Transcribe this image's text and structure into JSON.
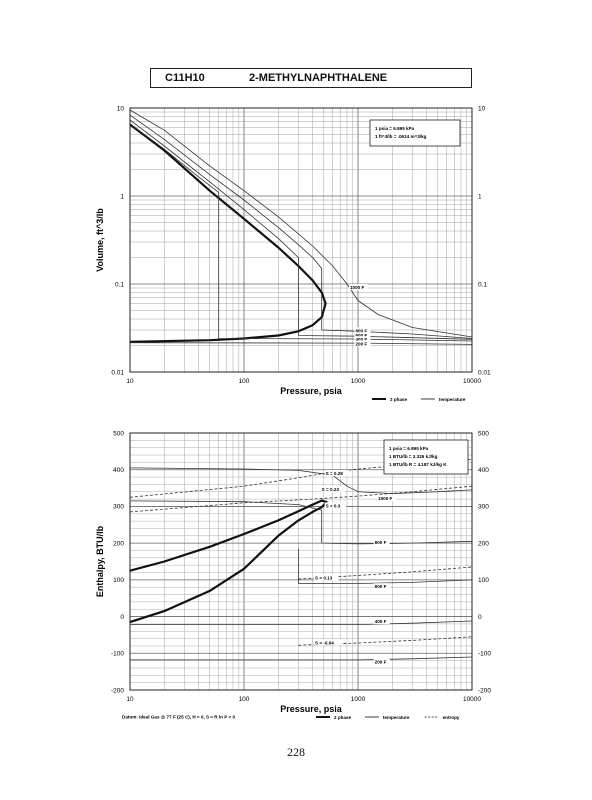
{
  "header": {
    "formula": "C11H10",
    "name": "2-METHYLNAPHTHALENE"
  },
  "page_number": "228",
  "chart_data": [
    {
      "type": "line",
      "xscale": "log",
      "yscale": "log",
      "xlim": [
        10,
        10000
      ],
      "ylim": [
        0.01,
        10
      ],
      "xlabel": "Pressure,  psia",
      "ylabel": "Volume,  ft^3/lb",
      "x_ticks": [
        "10",
        "100",
        "1000",
        "10000"
      ],
      "y_ticks_left": [
        "0.01",
        "0.1",
        "1",
        "10"
      ],
      "y_ticks_right": [
        "0.01",
        "0.1",
        "1",
        "10"
      ],
      "conversion_box": [
        "1 psia  =  6.895 kPa",
        "1 ft^3/lb  =  .0624 m^3/kg"
      ],
      "legend": [
        {
          "name": "2 phase",
          "style": "thick"
        },
        {
          "name": "temperature",
          "style": "thin"
        }
      ],
      "series": [
        {
          "name": "2 phase",
          "points": [
            [
              10,
              6.5
            ],
            [
              20,
              3.3
            ],
            [
              50,
              1.15
            ],
            [
              100,
              0.55
            ],
            [
              200,
              0.26
            ],
            [
              300,
              0.16
            ],
            [
              400,
              0.11
            ],
            [
              480,
              0.08
            ],
            [
              520,
              0.06
            ],
            [
              480,
              0.042
            ],
            [
              400,
              0.034
            ],
            [
              300,
              0.029
            ],
            [
              200,
              0.026
            ],
            [
              100,
              0.024
            ],
            [
              50,
              0.023
            ],
            [
              10,
              0.022
            ]
          ]
        },
        {
          "name": "1000 F",
          "points": [
            [
              10,
              9.5
            ],
            [
              20,
              5.6
            ],
            [
              50,
              2.2
            ],
            [
              100,
              1.15
            ],
            [
              200,
              0.58
            ],
            [
              400,
              0.27
            ],
            [
              600,
              0.16
            ],
            [
              800,
              0.1
            ],
            [
              1000,
              0.065
            ],
            [
              1500,
              0.045
            ],
            [
              3000,
              0.032
            ],
            [
              10000,
              0.025
            ]
          ]
        },
        {
          "name": "800 F",
          "points": [
            [
              10,
              8.3
            ],
            [
              20,
              4.4
            ],
            [
              50,
              1.75
            ],
            [
              100,
              0.9
            ],
            [
              200,
              0.44
            ],
            [
              300,
              0.28
            ],
            [
              400,
              0.2
            ],
            [
              480,
              0.15
            ],
            [
              480,
              0.03
            ],
            [
              1000,
              0.029
            ],
            [
              3000,
              0.027
            ],
            [
              10000,
              0.024
            ]
          ]
        },
        {
          "name": "600 F",
          "points": [
            [
              10,
              7.3
            ],
            [
              20,
              3.7
            ],
            [
              50,
              1.45
            ],
            [
              100,
              0.7
            ],
            [
              200,
              0.33
            ],
            [
              300,
              0.2
            ],
            [
              300,
              0.026
            ],
            [
              1000,
              0.0255
            ],
            [
              10000,
              0.0235
            ]
          ]
        },
        {
          "name": "400 F",
          "points": [
            [
              10,
              6.6
            ],
            [
              20,
              3.4
            ],
            [
              40,
              1.65
            ],
            [
              60,
              1.1
            ],
            [
              60,
              0.024
            ],
            [
              1000,
              0.0237
            ],
            [
              10000,
              0.0225
            ]
          ]
        },
        {
          "name": "200 F",
          "points": [
            [
              10,
              0.0215
            ],
            [
              1000,
              0.0213
            ],
            [
              10000,
              0.0206
            ]
          ]
        }
      ],
      "curve_labels": [
        "1000 F",
        "800 F",
        "600 F",
        "400 F",
        "200 F"
      ]
    },
    {
      "type": "line",
      "xscale": "log",
      "yscale": "linear",
      "xlim": [
        10,
        10000
      ],
      "ylim": [
        -200,
        500
      ],
      "xlabel": "Pressure,  psia",
      "ylabel": "Enthalpy,  BTU/lb",
      "x_ticks": [
        "10",
        "100",
        "1000",
        "10000"
      ],
      "y_ticks_left": [
        "-200",
        "-100",
        "0",
        "100",
        "200",
        "300",
        "400",
        "500"
      ],
      "y_ticks_right": [
        "-200",
        "-100",
        "0",
        "100",
        "200",
        "300",
        "400",
        "500"
      ],
      "conversion_box": [
        "1 psia  =  6.895 kPa",
        "1 BTU/lb  =  2.326 kJ/kg",
        "1 BTU/lb R  =  4.187 kJ/kg K"
      ],
      "legend": [
        {
          "name": "2 phase",
          "style": "thick"
        },
        {
          "name": "temperature",
          "style": "thin"
        },
        {
          "name": "entropy",
          "style": "dashed"
        }
      ],
      "footnote": "Datum: Ideal Gas @ 77 F (25 C),  H = 0,  S = R ln P = 0",
      "series": [
        {
          "name": "2 phase",
          "points": [
            [
              10,
              125
            ],
            [
              20,
              150
            ],
            [
              50,
              190
            ],
            [
              100,
              225
            ],
            [
              200,
              262
            ],
            [
              300,
              287
            ],
            [
              400,
              305
            ],
            [
              480,
              316
            ],
            [
              530,
              312
            ],
            [
              480,
              298
            ],
            [
              400,
              285
            ],
            [
              300,
              262
            ],
            [
              200,
              220
            ],
            [
              100,
              130
            ],
            [
              50,
              70
            ],
            [
              20,
              15
            ],
            [
              10,
              -15
            ]
          ]
        },
        {
          "name": "1000 F",
          "points": [
            [
              10,
              405
            ],
            [
              100,
              402
            ],
            [
              300,
              398
            ],
            [
              600,
              385
            ],
            [
              800,
              355
            ],
            [
              1000,
              340
            ],
            [
              2000,
              335
            ],
            [
              5000,
              340
            ],
            [
              10000,
              345
            ]
          ]
        },
        {
          "name": "800 F",
          "points": [
            [
              10,
              315
            ],
            [
              100,
              313
            ],
            [
              300,
              305
            ],
            [
              480,
              290
            ],
            [
              480,
              200
            ],
            [
              1000,
              198
            ],
            [
              3000,
              200
            ],
            [
              10000,
              205
            ]
          ]
        },
        {
          "name": "600 F",
          "points": [
            [
              300,
              185
            ],
            [
              300,
              90
            ],
            [
              1000,
              90
            ],
            [
              3000,
              93
            ],
            [
              10000,
              100
            ]
          ]
        },
        {
          "name": "400 F",
          "points": [
            [
              10,
              -22
            ],
            [
              1000,
              -22
            ],
            [
              3000,
              -18
            ],
            [
              10000,
              -12
            ]
          ]
        },
        {
          "name": "200 F",
          "points": [
            [
              10,
              -118
            ],
            [
              1000,
              -118
            ],
            [
              3000,
              -115
            ],
            [
              10000,
              -110
            ]
          ]
        },
        {
          "name": "S = 0.28",
          "dashed": true,
          "points": [
            [
              10,
              325
            ],
            [
              100,
              355
            ],
            [
              300,
              378
            ],
            [
              500,
              390
            ],
            [
              1000,
              402
            ],
            [
              3000,
              415
            ],
            [
              10000,
              428
            ]
          ]
        },
        {
          "name": "S = 0.23",
          "dashed": true,
          "points": [
            [
              10,
              285
            ],
            [
              100,
              310
            ],
            [
              400,
              320
            ],
            [
              1000,
              328
            ],
            [
              3000,
              340
            ],
            [
              10000,
              355
            ]
          ]
        },
        {
          "name": "S = 0.13",
          "dashed": true,
          "points": [
            [
              300,
              102
            ],
            [
              1000,
              112
            ],
            [
              3000,
              122
            ],
            [
              10000,
              135
            ]
          ]
        },
        {
          "name": "S = -0.04",
          "dashed": true,
          "points": [
            [
              300,
              -78
            ],
            [
              1000,
              -72
            ],
            [
              3000,
              -65
            ],
            [
              10000,
              -55
            ]
          ]
        }
      ],
      "curve_labels": [
        "1000 F",
        "800 F",
        "600 F",
        "400 F",
        "200 F",
        "S = 0.28",
        "S = 0.23",
        "S = 0.3",
        "S = 0.13",
        "S = -0.04"
      ]
    }
  ]
}
